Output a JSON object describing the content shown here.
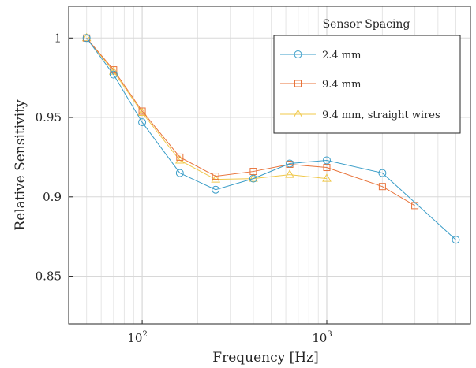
{
  "chart_data": {
    "type": "line",
    "xlabel": "Frequency [Hz]",
    "ylabel": "Relative Sensitivity",
    "xscale": "log",
    "xlim": [
      40,
      6000
    ],
    "ylim": [
      0.82,
      1.02
    ],
    "yticks": [
      "0.85",
      "0.9",
      "0.95",
      "1"
    ],
    "xticks": [
      {
        "base": "10",
        "exp": "2"
      },
      {
        "base": "10",
        "exp": "3"
      }
    ],
    "grid": true,
    "legend": {
      "title": "Sensor Spacing",
      "position": "top-right"
    },
    "series": [
      {
        "name": "2.4 mm",
        "color": "#3a9dc8",
        "marker": "circle",
        "x": [
          50,
          70,
          100,
          160,
          250,
          400,
          630,
          1000,
          2000,
          5000
        ],
        "y": [
          1.0,
          0.977,
          0.947,
          0.915,
          0.9045,
          0.9115,
          0.921,
          0.923,
          0.915,
          0.873
        ]
      },
      {
        "name": "9.4 mm",
        "color": "#e8733a",
        "marker": "square",
        "x": [
          50,
          70,
          100,
          160,
          250,
          400,
          630,
          1000,
          2000,
          3000
        ],
        "y": [
          1.0,
          0.98,
          0.954,
          0.925,
          0.913,
          0.916,
          0.9205,
          0.9185,
          0.9065,
          0.8945
        ]
      },
      {
        "name": "9.4 mm, straight wires",
        "color": "#f0c84a",
        "marker": "triangle",
        "x": [
          50,
          70,
          100,
          160,
          250,
          400,
          630,
          1000
        ],
        "y": [
          1.0,
          0.979,
          0.953,
          0.923,
          0.911,
          0.9115,
          0.914,
          0.9115
        ]
      }
    ]
  }
}
